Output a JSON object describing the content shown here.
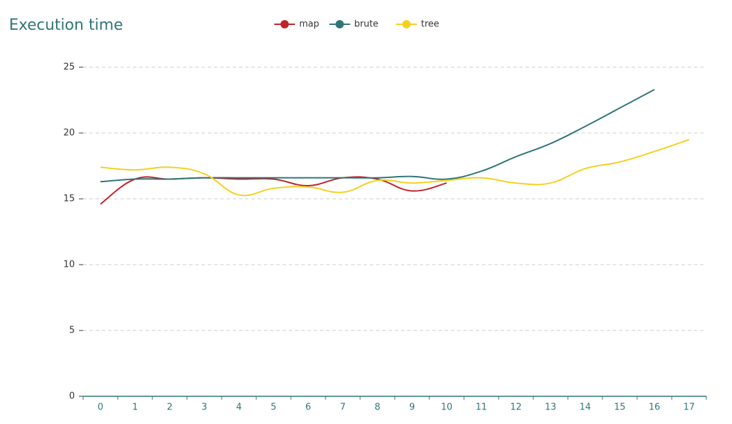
{
  "chart_data": {
    "type": "line",
    "title": "Execution time",
    "categories": [
      0,
      1,
      2,
      3,
      4,
      5,
      6,
      7,
      8,
      9,
      10,
      11,
      12,
      13,
      14,
      15,
      16,
      17
    ],
    "series": [
      {
        "name": "map",
        "color": "#c1232b",
        "values": [
          14.6,
          16.5,
          16.5,
          16.6,
          16.5,
          16.5,
          16.0,
          16.6,
          16.5,
          15.6,
          16.2,
          null,
          null,
          null,
          null,
          null,
          null,
          null
        ]
      },
      {
        "name": "brute",
        "color": "#2f7577",
        "values": [
          16.3,
          16.5,
          16.5,
          16.6,
          16.6,
          16.6,
          16.6,
          16.6,
          16.6,
          16.7,
          16.5,
          17.1,
          18.2,
          19.2,
          20.5,
          21.9,
          23.3,
          null
        ]
      },
      {
        "name": "tree",
        "color": "#f6cf1f",
        "values": [
          17.4,
          17.2,
          17.4,
          16.9,
          15.3,
          15.8,
          15.9,
          15.5,
          16.4,
          16.2,
          16.4,
          16.6,
          16.2,
          16.2,
          17.3,
          17.8,
          18.6,
          19.5
        ]
      }
    ],
    "ylim": [
      0,
      25
    ],
    "yticks": [
      0,
      5,
      10,
      15,
      20,
      25
    ],
    "grid": true,
    "legend": "top",
    "smooth": true
  }
}
